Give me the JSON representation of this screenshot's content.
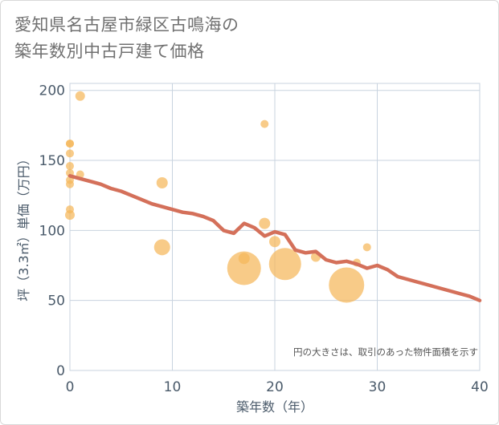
{
  "title": {
    "line1": "愛知県名古屋市緑区古鳴海の",
    "line2": "築年数別中古戸建て価格"
  },
  "colors": {
    "bubble": "#f5b75a",
    "line": "#d4705a",
    "grid": "#c8d3df",
    "text": "#4a5a6a"
  },
  "chart_data": {
    "type": "scatter",
    "title": "愛知県名古屋市緑区古鳴海の築年数別中古戸建て価格",
    "xlabel": "築年数（年）",
    "ylabel": "坪（3.3㎡）単価（万円）",
    "xlim": [
      0,
      40
    ],
    "ylim": [
      0,
      205
    ],
    "x_ticks": [
      0,
      10,
      20,
      30,
      40
    ],
    "y_ticks": [
      0,
      50,
      100,
      150,
      200
    ],
    "annotation": "円の大きさは、取引のあった物件面積を示す",
    "bubbles": [
      {
        "x": 0,
        "y": 162,
        "r": 5
      },
      {
        "x": 0,
        "y": 162,
        "r": 5
      },
      {
        "x": 0,
        "y": 155,
        "r": 5
      },
      {
        "x": 0,
        "y": 146,
        "r": 5
      },
      {
        "x": 0,
        "y": 141,
        "r": 5
      },
      {
        "x": 0,
        "y": 136,
        "r": 5
      },
      {
        "x": 0,
        "y": 133,
        "r": 5
      },
      {
        "x": 0,
        "y": 115,
        "r": 5
      },
      {
        "x": 0,
        "y": 111,
        "r": 6
      },
      {
        "x": 1,
        "y": 196,
        "r": 6
      },
      {
        "x": 1,
        "y": 140,
        "r": 5
      },
      {
        "x": 9,
        "y": 134,
        "r": 7
      },
      {
        "x": 9,
        "y": 88,
        "r": 10
      },
      {
        "x": 17,
        "y": 73,
        "r": 21
      },
      {
        "x": 17,
        "y": 80,
        "r": 7
      },
      {
        "x": 19,
        "y": 176,
        "r": 5
      },
      {
        "x": 19,
        "y": 105,
        "r": 7
      },
      {
        "x": 20,
        "y": 92,
        "r": 7
      },
      {
        "x": 21,
        "y": 76,
        "r": 20
      },
      {
        "x": 24,
        "y": 81,
        "r": 6
      },
      {
        "x": 27,
        "y": 61,
        "r": 22
      },
      {
        "x": 28,
        "y": 77,
        "r": 5
      },
      {
        "x": 29,
        "y": 88,
        "r": 5
      }
    ],
    "series": [
      {
        "name": "trend",
        "x": [
          0,
          1,
          2,
          3,
          4,
          5,
          6,
          7,
          8,
          9,
          10,
          11,
          12,
          13,
          14,
          15,
          16,
          17,
          18,
          19,
          20,
          21,
          22,
          23,
          24,
          25,
          26,
          27,
          28,
          29,
          30,
          31,
          32,
          33,
          34,
          35,
          36,
          37,
          38,
          39,
          40
        ],
        "y": [
          139,
          137,
          135,
          133,
          130,
          128,
          125,
          122,
          119,
          117,
          115,
          113,
          112,
          110,
          107,
          100,
          98,
          105,
          102,
          96,
          99,
          97,
          86,
          84,
          85,
          79,
          77,
          78,
          76,
          73,
          75,
          72,
          67,
          65,
          63,
          61,
          59,
          57,
          55,
          53,
          50
        ]
      }
    ]
  }
}
